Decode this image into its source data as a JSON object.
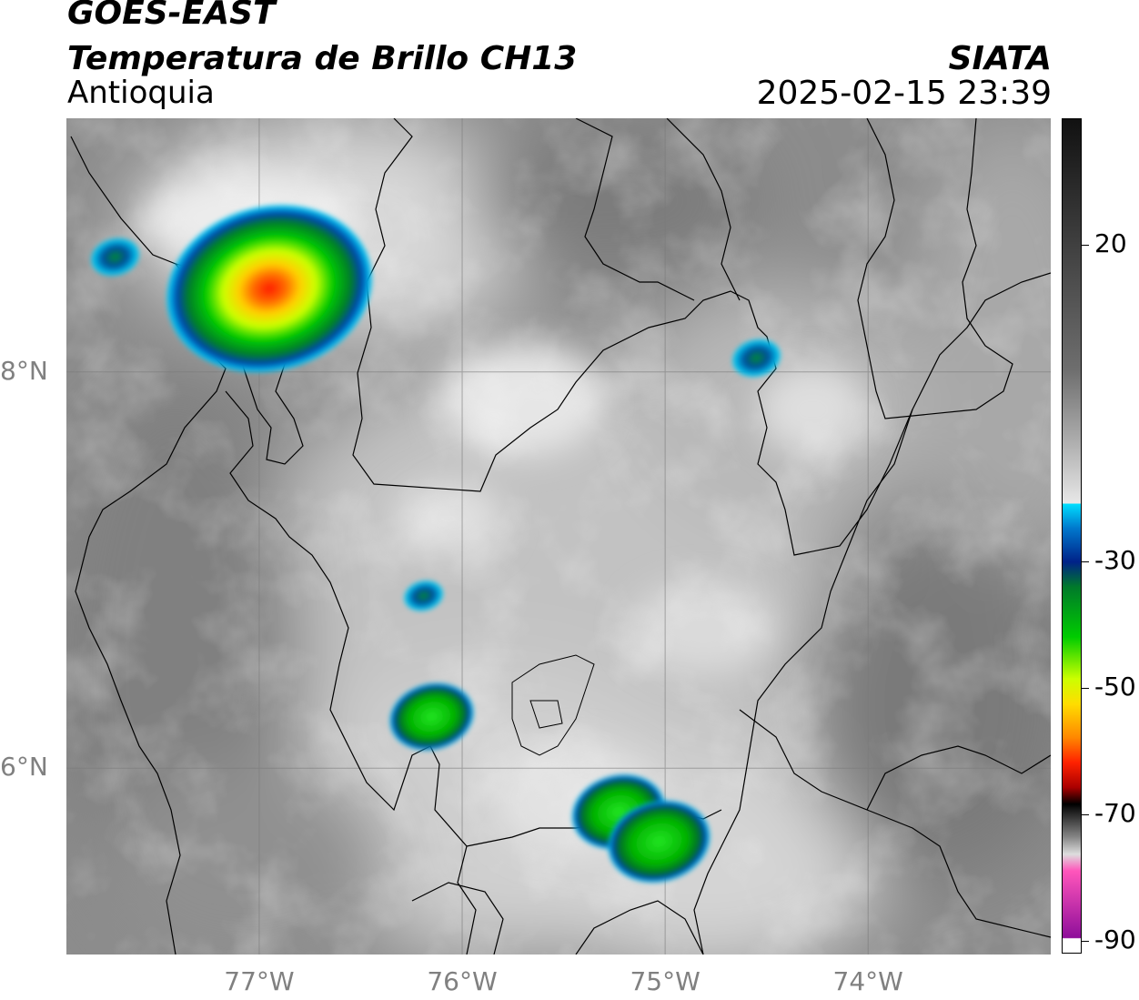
{
  "header": {
    "title_line1": "GOES-EAST",
    "title_line2": "Temperatura de Brillo CH13",
    "region": "Antioquia",
    "agency": "SIATA",
    "datetime": "2025-02-15 23:39"
  },
  "map": {
    "lon_range": [
      -77.95,
      -73.1
    ],
    "lat_range": [
      5.06,
      9.28
    ],
    "lat_ticks": [
      {
        "value": 8,
        "label": "8°N"
      },
      {
        "value": 6,
        "label": "6°N"
      }
    ],
    "lon_ticks": [
      {
        "value": -77,
        "label": "77°W"
      },
      {
        "value": -76,
        "label": "76°W"
      },
      {
        "value": -75,
        "label": "75°W"
      },
      {
        "value": -74,
        "label": "74°W"
      }
    ],
    "grid": true,
    "storm_cells": [
      {
        "name": "cell-uraba-north",
        "lon": -76.95,
        "lat": 8.42,
        "peak_c": -65
      },
      {
        "name": "cell-far-west",
        "lon": -77.71,
        "lat": 8.58,
        "peak_c": -30
      },
      {
        "name": "cell-northeast",
        "lon": -74.55,
        "lat": 8.07,
        "peak_c": -30
      },
      {
        "name": "cell-central-small",
        "lon": -76.19,
        "lat": 6.87,
        "peak_c": -28
      },
      {
        "name": "cell-central-west",
        "lon": -76.15,
        "lat": 6.26,
        "peak_c": -38
      },
      {
        "name": "cell-south-a",
        "lon": -75.23,
        "lat": 5.78,
        "peak_c": -40
      },
      {
        "name": "cell-south-b",
        "lon": -75.03,
        "lat": 5.63,
        "peak_c": -42
      }
    ]
  },
  "colorbar": {
    "ticks": [
      {
        "value": 20,
        "label": "20"
      },
      {
        "value": -30,
        "label": "-30"
      },
      {
        "value": -50,
        "label": "-50"
      },
      {
        "value": -70,
        "label": "-70"
      },
      {
        "value": -90,
        "label": "-90"
      }
    ],
    "stops": [
      {
        "offset": 0.0,
        "color": "#111111"
      },
      {
        "offset": 0.3,
        "color": "#6e6e6e"
      },
      {
        "offset": 0.38,
        "color": "#a9a9a9"
      },
      {
        "offset": 0.46,
        "color": "#e8e8e8"
      },
      {
        "offset": 0.448,
        "color": "#f4f4f4"
      },
      {
        "offset": 0.449,
        "color": "#00e0ff"
      },
      {
        "offset": 0.49,
        "color": "#0077cc"
      },
      {
        "offset": 0.53,
        "color": "#002288"
      },
      {
        "offset": 0.56,
        "color": "#007a2a"
      },
      {
        "offset": 0.62,
        "color": "#00cc00"
      },
      {
        "offset": 0.67,
        "color": "#ccff00"
      },
      {
        "offset": 0.7,
        "color": "#ffdd00"
      },
      {
        "offset": 0.74,
        "color": "#ff8800"
      },
      {
        "offset": 0.77,
        "color": "#ff2200"
      },
      {
        "offset": 0.8,
        "color": "#aa0000"
      },
      {
        "offset": 0.82,
        "color": "#000000"
      },
      {
        "offset": 0.86,
        "color": "#888888"
      },
      {
        "offset": 0.88,
        "color": "#dddddd"
      },
      {
        "offset": 0.9,
        "color": "#ff55bb"
      },
      {
        "offset": 0.98,
        "color": "#8e0e9a"
      },
      {
        "offset": 0.981,
        "color": "#ffffff"
      },
      {
        "offset": 1.0,
        "color": "#ffffff"
      }
    ]
  }
}
